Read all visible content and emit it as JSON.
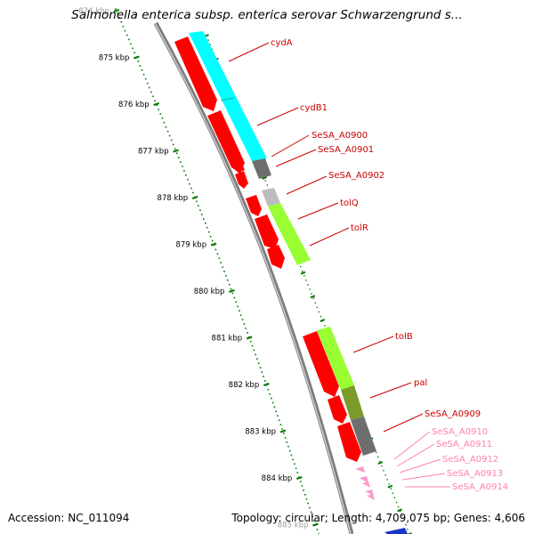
{
  "title": "Salmonella enterica subsp. enterica serovar Schwarzengrund s...",
  "footer": {
    "accession": "Accession: NC_011094",
    "topology": "Topology: circular; Length: 4,709,075 bp; Genes: 4,606"
  },
  "colors": {
    "forward_strand": "#ff0000",
    "cyan_cog": "#00ffff",
    "lime_cog": "#99ff33",
    "dark_gray_cog": "#6e6e6e",
    "light_gray_cog": "#bdbdbd",
    "olive_cog": "#7a9a2a",
    "small_gene": "#ff99cc",
    "ruler": "#007a00",
    "backbone": "#888888",
    "label_red": "#cc0000",
    "label_pink": "#ff80b0"
  },
  "ruler": {
    "labels": [
      "874 kbp",
      "875 kbp",
      "876 kbp",
      "877 kbp",
      "878 kbp",
      "879 kbp",
      "880 kbp",
      "881 kbp",
      "882 kbp",
      "883 kbp",
      "884 kbp",
      "885 kbp"
    ]
  },
  "genes": [
    {
      "name": "cydA",
      "color_key": "cyan_cog"
    },
    {
      "name": "cydB1",
      "color_key": "cyan_cog"
    },
    {
      "name": "SeSA_A0900",
      "color_key": "dark_gray_cog"
    },
    {
      "name": "SeSA_A0901",
      "color_key": "dark_gray_cog"
    },
    {
      "name": "SeSA_A0902",
      "color_key": "light_gray_cog"
    },
    {
      "name": "tolQ",
      "color_key": "lime_cog"
    },
    {
      "name": "tolR",
      "color_key": "lime_cog"
    },
    {
      "name": "tolB",
      "color_key": "lime_cog"
    },
    {
      "name": "pal",
      "color_key": "olive_cog"
    },
    {
      "name": "SeSA_A0909",
      "color_key": "dark_gray_cog"
    },
    {
      "name": "SeSA_A0910",
      "color_key": "small_gene"
    },
    {
      "name": "SeSA_A0911",
      "color_key": "small_gene"
    },
    {
      "name": "SeSA_A0912",
      "color_key": "small_gene"
    },
    {
      "name": "SeSA_A0913",
      "color_key": "small_gene"
    },
    {
      "name": "SeSA_A0914",
      "color_key": "small_gene"
    }
  ]
}
